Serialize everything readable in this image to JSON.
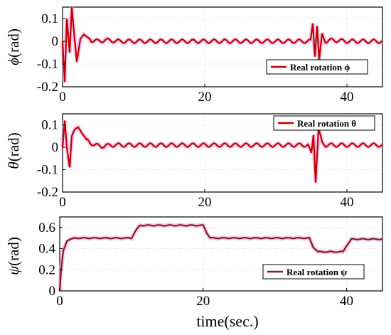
{
  "chart_data": [
    {
      "type": "line",
      "ylabel_symbol": "ϕ",
      "ylabel_unit": "(rad)",
      "xlim": [
        0,
        45
      ],
      "ylim": [
        -0.2,
        0.15
      ],
      "xticks": [
        "0",
        "20",
        "40"
      ],
      "yticks": [
        "0.1",
        "0",
        "-0.1",
        "-0.2"
      ],
      "grid": true,
      "legend_placement": "right",
      "series": [
        {
          "name": "Real rotation ϕ",
          "color": "#c00000",
          "x": [
            0,
            0.3,
            0.6,
            1.0,
            1.3,
            1.6,
            2.0,
            2.5,
            3,
            4,
            5,
            6,
            8,
            10,
            15,
            20,
            25,
            30,
            34.9,
            35.2,
            35.5,
            35.8,
            36.1,
            36.5,
            37,
            38,
            40,
            45
          ],
          "y": [
            0,
            -0.18,
            0.1,
            -0.05,
            0.15,
            0.04,
            -0.09,
            0.01,
            0.03,
            0.005,
            0.0,
            0.005,
            0.0,
            0.0,
            0.0,
            0.0,
            0.0,
            0.0,
            0.0,
            0.08,
            -0.06,
            0.07,
            -0.09,
            0.03,
            0.0,
            0.005,
            0.0,
            0.0
          ]
        }
      ]
    },
    {
      "type": "line",
      "ylabel_symbol": "θ",
      "ylabel_unit": "(rad)",
      "xlim": [
        0,
        45
      ],
      "ylim": [
        -0.2,
        0.15
      ],
      "xticks": [
        "0",
        "20",
        "40"
      ],
      "yticks": [
        "0.1",
        "0",
        "-0.1",
        "-0.2"
      ],
      "grid": true,
      "legend_placement": "top-right",
      "series": [
        {
          "name": "Real rotation θ",
          "color": "#c00000",
          "x": [
            0,
            0.3,
            0.6,
            1.0,
            1.3,
            1.7,
            2.2,
            2.8,
            3.5,
            4.5,
            5.5,
            7,
            10,
            15,
            20,
            25,
            30,
            34.5,
            35.0,
            35.3,
            35.6,
            36.0,
            36.5,
            37,
            38,
            40,
            45
          ],
          "y": [
            0,
            0.12,
            0.0,
            -0.09,
            0.05,
            0.08,
            0.09,
            0.06,
            0.03,
            0.01,
            0.005,
            0.01,
            0.01,
            0.01,
            0.01,
            0.01,
            0.01,
            0.01,
            -0.03,
            0.06,
            -0.15,
            0.08,
            0.02,
            0.01,
            0.01,
            0.01,
            0.01
          ]
        }
      ]
    },
    {
      "type": "line",
      "ylabel_symbol": "ψ",
      "ylabel_unit": "(rad)",
      "xlabel": "time(sec.)",
      "xlim": [
        0,
        45
      ],
      "ylim": [
        0,
        0.7
      ],
      "xticks": [
        "0",
        "20",
        "40"
      ],
      "yticks": [
        "0.6",
        "0.4",
        "0.2",
        "0"
      ],
      "grid": true,
      "legend_placement": "bottom-right",
      "series": [
        {
          "name": "Real rotation ψ",
          "color": "#8b1a1a",
          "x": [
            0,
            0.2,
            0.5,
            1.0,
            1.5,
            2.0,
            10.0,
            10.5,
            11.2,
            20.0,
            20.5,
            21.0,
            34.8,
            35.3,
            36.0,
            39.5,
            40.0,
            40.7,
            45
          ],
          "y": [
            0,
            0.2,
            0.38,
            0.47,
            0.49,
            0.5,
            0.5,
            0.56,
            0.62,
            0.62,
            0.55,
            0.5,
            0.5,
            0.42,
            0.37,
            0.37,
            0.43,
            0.49,
            0.49
          ]
        }
      ]
    }
  ]
}
